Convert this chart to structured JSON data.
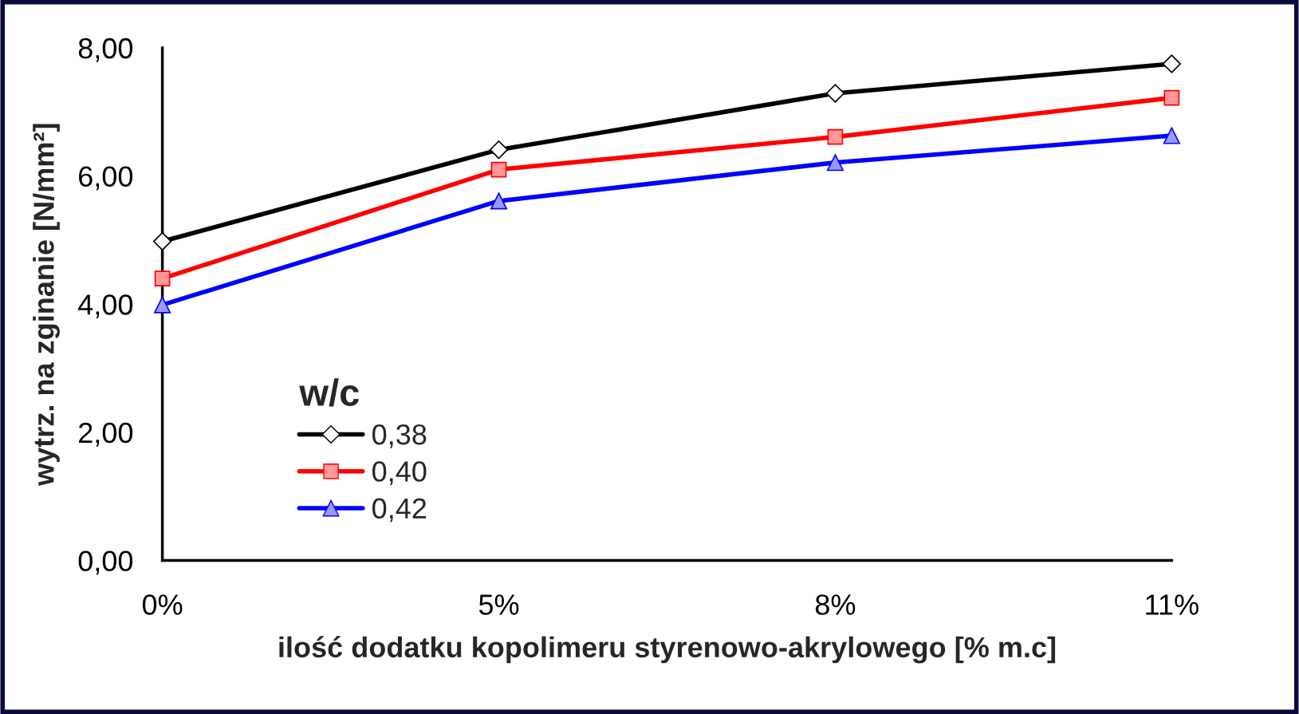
{
  "chart_data": {
    "type": "line",
    "xlabel": "ilość dodatku kopolimeru styrenowo-akrylowego [% m.c]",
    "ylabel": "wytrz. na zginanie [N/mm²]",
    "legend_title": "w/c",
    "categories": [
      "0%",
      "5%",
      "8%",
      "11%"
    ],
    "series": [
      {
        "name": "0,38",
        "color": "#000000",
        "marker": "diamond",
        "values": [
          4.98,
          6.41,
          7.29,
          7.75
        ]
      },
      {
        "name": "0,40",
        "color": "#ff0000",
        "marker": "square",
        "values": [
          4.4,
          6.1,
          6.61,
          7.22
        ]
      },
      {
        "name": "0,42",
        "color": "#0000ff",
        "marker": "triangle",
        "values": [
          3.99,
          5.61,
          6.21,
          6.63
        ]
      }
    ],
    "ylim": [
      0,
      8
    ],
    "yticks": [
      {
        "value": 0,
        "label": "0,00"
      },
      {
        "value": 2,
        "label": "2,00"
      },
      {
        "value": 4,
        "label": "4,00"
      },
      {
        "value": 6,
        "label": "6,00"
      },
      {
        "value": 8,
        "label": "8,00"
      }
    ],
    "grid": false,
    "legend": "bottom left",
    "line_style": "solid"
  }
}
